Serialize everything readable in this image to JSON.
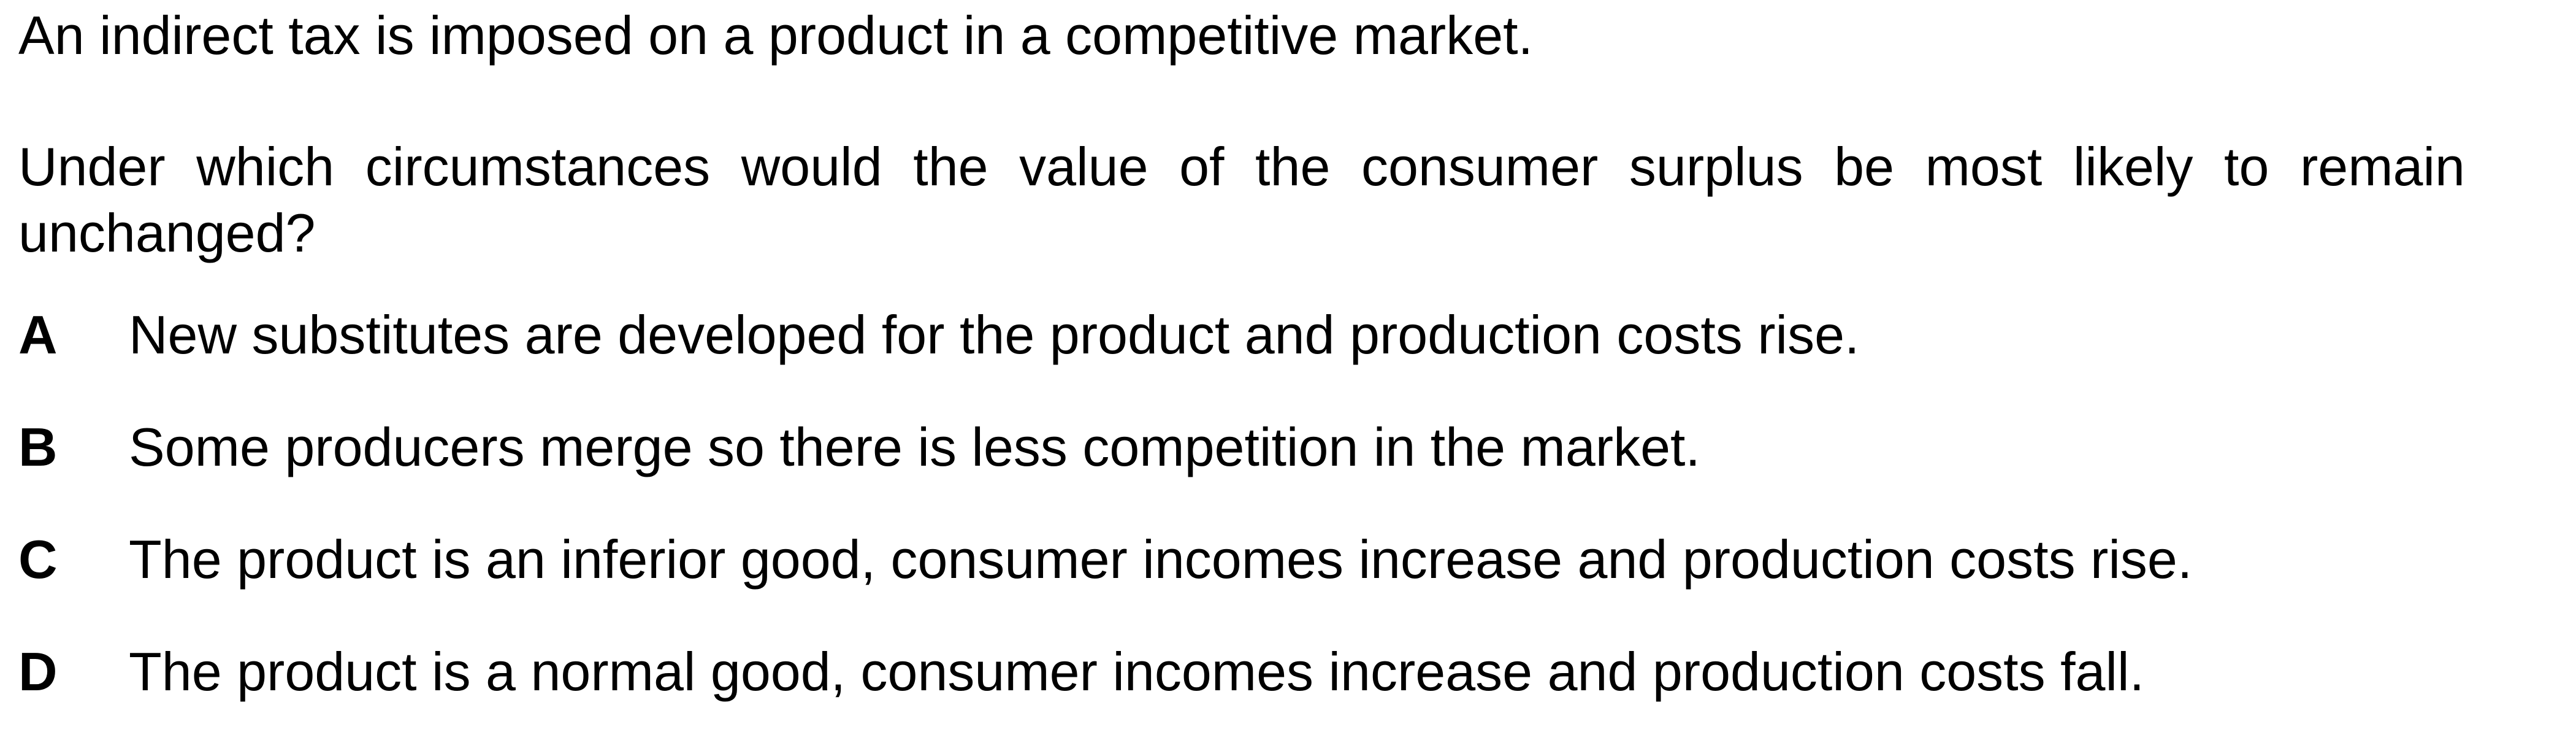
{
  "intro": "An indirect tax is imposed on a product in a competitive market.",
  "question": "Under which circumstances would the value of the consumer surplus be most likely to remain unchanged?",
  "options": [
    {
      "letter": "A",
      "text": "New substitutes are developed for the product and production costs rise."
    },
    {
      "letter": "B",
      "text": "Some producers merge so there is less competition in the market."
    },
    {
      "letter": "C",
      "text": "The product is an inferior good, consumer incomes increase and production costs rise."
    },
    {
      "letter": "D",
      "text": "The product is a normal good, consumer incomes increase and production costs fall."
    }
  ]
}
